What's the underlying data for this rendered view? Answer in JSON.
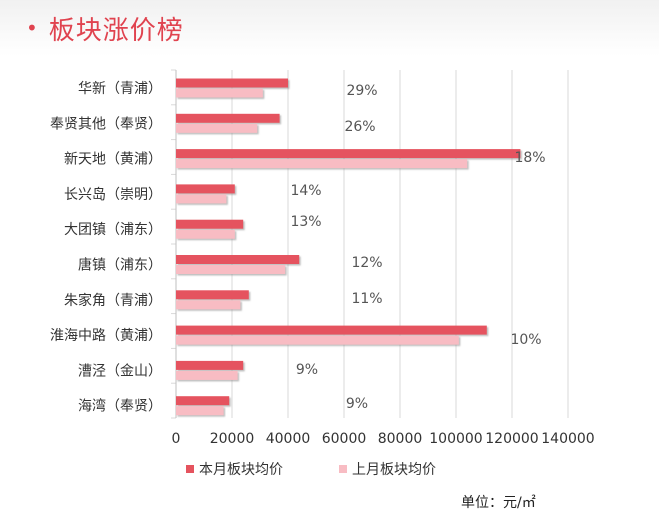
{
  "page": {
    "title": "板块涨价榜",
    "bullet": "•",
    "unit": "单位：元/㎡"
  },
  "colors": {
    "title": "#e0434f",
    "current": "#e5535e",
    "previous": "#f8bcc3",
    "grid": "#d9d9d9",
    "axis_text": "#333333",
    "pct_text": "#555555"
  },
  "chart_data": {
    "type": "bar",
    "orientation": "horizontal",
    "categories": [
      "华新（青浦）",
      "奉贤其他（奉贤）",
      "新天地（黄浦）",
      "长兴岛（崇明）",
      "大团镇（浦东）",
      "唐镇（浦东）",
      "朱家角（青浦）",
      "淮海中路（黄浦）",
      "漕泾（金山）",
      "海湾（奉贤）"
    ],
    "series": [
      {
        "name": "本月板块均价",
        "values": [
          40000,
          37000,
          123000,
          21000,
          24000,
          44000,
          26000,
          111000,
          24000,
          19000
        ]
      },
      {
        "name": "上月板块均价",
        "values": [
          31000,
          29000,
          104000,
          18000,
          21000,
          39000,
          23000,
          101000,
          22000,
          17000
        ]
      }
    ],
    "change_labels": [
      "29%",
      "26%",
      "18%",
      "14%",
      "13%",
      "12%",
      "11%",
      "10%",
      "9%",
      "9%"
    ],
    "xlim": [
      0,
      140000
    ],
    "xticks": [
      0,
      20000,
      40000,
      60000,
      80000,
      100000,
      120000,
      140000
    ],
    "grid": true,
    "legend_position": "bottom-left"
  }
}
